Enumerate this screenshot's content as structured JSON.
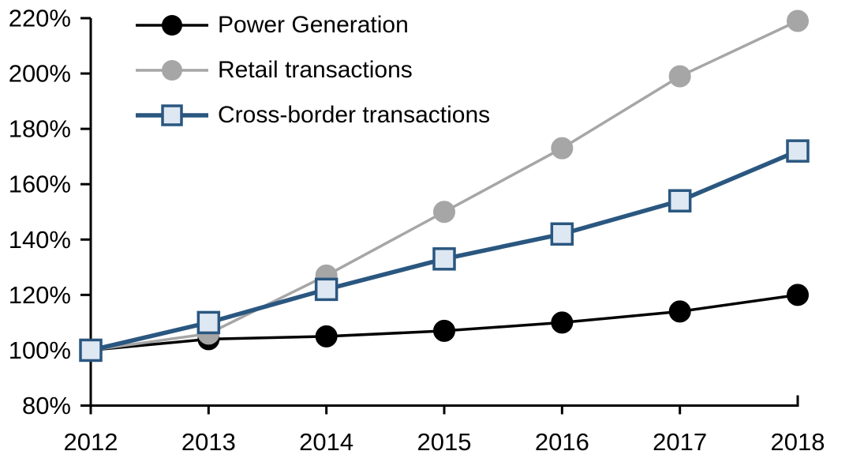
{
  "chart_data": {
    "type": "line",
    "title": "",
    "xlabel": "",
    "ylabel": "",
    "x_labels": [
      "2012",
      "2013",
      "2014",
      "2015",
      "2016",
      "2017",
      "2018"
    ],
    "y_tick_labels": [
      "80%",
      "100%",
      "120%",
      "140%",
      "160%",
      "180%",
      "200%",
      "220%"
    ],
    "ylim": [
      80,
      220
    ],
    "grid": false,
    "legend_position": "top-left",
    "axis_color": "#000000",
    "background": "#FFFFFF",
    "series": [
      {
        "name": "Power Generation",
        "values": [
          100,
          104,
          105,
          107,
          110,
          114,
          120
        ],
        "color": "#000000",
        "marker": "circle",
        "marker_fill": "#000000",
        "line_width": 3.5
      },
      {
        "name": "Retail transactions",
        "values": [
          100,
          106,
          127,
          150,
          173,
          199,
          219
        ],
        "color": "#A6A6A6",
        "marker": "circle",
        "marker_fill": "#A6A6A6",
        "line_width": 3.5
      },
      {
        "name": "Cross-border transactions",
        "values": [
          100,
          110,
          122,
          133,
          142,
          154,
          172
        ],
        "color": "#2A5780",
        "marker": "square",
        "marker_fill": "#DEE8F3",
        "line_width": 5.5
      }
    ]
  }
}
